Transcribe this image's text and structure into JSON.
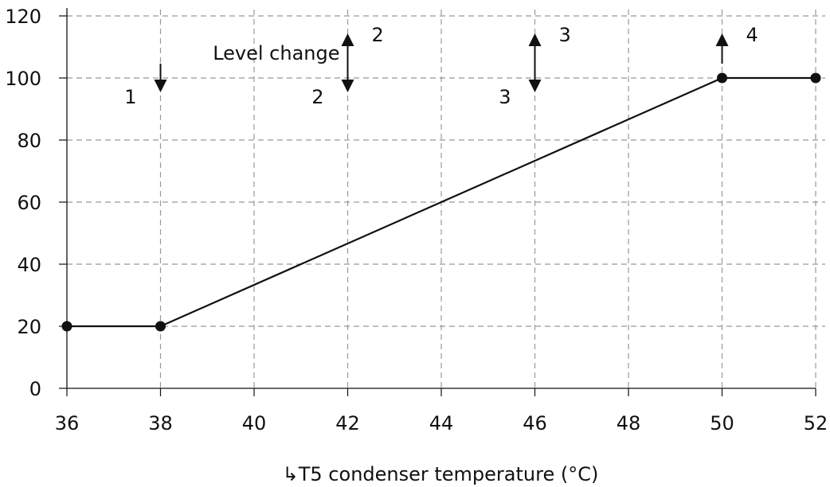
{
  "chart_data": {
    "type": "line",
    "title": "",
    "xlabel": "↳T5 condenser temperature (°C)",
    "ylabel": "",
    "xlim": [
      36,
      52
    ],
    "ylim": [
      0,
      120
    ],
    "x_ticks": [
      "36",
      "38",
      "40",
      "42",
      "44",
      "46",
      "48",
      "50",
      "52"
    ],
    "y_ticks": [
      "0",
      "20",
      "40",
      "60",
      "80",
      "100",
      "120"
    ],
    "grid": true,
    "series": [
      {
        "name": "",
        "x": [
          36,
          38,
          50,
          52
        ],
        "y": [
          20,
          20,
          100,
          100
        ]
      }
    ],
    "level_change_label": "Level change",
    "annotations": [
      {
        "x": 38,
        "labels_down": [
          "1"
        ],
        "labels_up": [],
        "arrow": "down"
      },
      {
        "x": 42,
        "labels_up": [
          "2"
        ],
        "labels_down": [
          "2"
        ],
        "arrow": "both"
      },
      {
        "x": 46,
        "labels_up": [
          "3"
        ],
        "labels_down": [
          "3"
        ],
        "arrow": "both"
      },
      {
        "x": 50,
        "labels_up": [
          "4"
        ],
        "labels_down": [],
        "arrow": "up"
      }
    ],
    "colors": {
      "line": "#111111",
      "grid": "#999999",
      "axis": "#111111"
    }
  }
}
